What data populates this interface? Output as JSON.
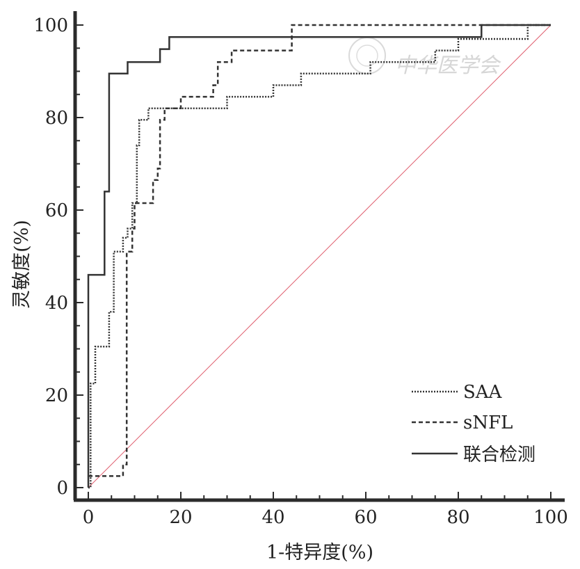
{
  "chart_data": {
    "type": "line",
    "subtype": "roc",
    "xlabel": "1-特异度(%)",
    "ylabel": "灵敏度(%)",
    "xlim": [
      0,
      100
    ],
    "ylim": [
      0,
      100
    ],
    "x_ticks": [
      "0",
      "20",
      "40",
      "60",
      "80",
      "100"
    ],
    "y_ticks": [
      "0",
      "20",
      "40",
      "60",
      "80",
      "100"
    ],
    "legend_position": "bottom-right",
    "grid": false,
    "reference_line": {
      "x": [
        0,
        100
      ],
      "y": [
        0,
        100
      ],
      "color": "#e06070"
    },
    "watermark": "中华医学会",
    "series": [
      {
        "name": "SAA",
        "style": "dotted",
        "color": "#333333",
        "points": [
          [
            0,
            0
          ],
          [
            0.5,
            0
          ],
          [
            0.5,
            22.5
          ],
          [
            1.5,
            22.5
          ],
          [
            1.5,
            30.5
          ],
          [
            4.5,
            30.5
          ],
          [
            4.5,
            38
          ],
          [
            5.5,
            38
          ],
          [
            5.5,
            51
          ],
          [
            7.5,
            51
          ],
          [
            7.5,
            54
          ],
          [
            8.5,
            54
          ],
          [
            8.5,
            56
          ],
          [
            9.5,
            56
          ],
          [
            9.5,
            61.5
          ],
          [
            10.5,
            61.5
          ],
          [
            10.5,
            74
          ],
          [
            11,
            74
          ],
          [
            11,
            79.5
          ],
          [
            13,
            79.5
          ],
          [
            13,
            82
          ],
          [
            30,
            82
          ],
          [
            30,
            84.5
          ],
          [
            40,
            84.5
          ],
          [
            40,
            87
          ],
          [
            46,
            87
          ],
          [
            46,
            89.5
          ],
          [
            61,
            89.5
          ],
          [
            61,
            92
          ],
          [
            75,
            92
          ],
          [
            75,
            94.5
          ],
          [
            80,
            94.5
          ],
          [
            80,
            97
          ],
          [
            95,
            97
          ],
          [
            95,
            100
          ],
          [
            100,
            100
          ]
        ]
      },
      {
        "name": "sNFL",
        "style": "dashed",
        "color": "#333333",
        "points": [
          [
            0,
            2.5
          ],
          [
            7.5,
            2.5
          ],
          [
            7.5,
            5
          ],
          [
            8.3,
            5
          ],
          [
            8.3,
            51
          ],
          [
            9.5,
            51
          ],
          [
            9.5,
            56
          ],
          [
            10,
            56
          ],
          [
            10,
            61.5
          ],
          [
            14,
            61.5
          ],
          [
            14,
            66.5
          ],
          [
            15,
            66.5
          ],
          [
            15,
            69
          ],
          [
            15.5,
            69
          ],
          [
            15.5,
            79.5
          ],
          [
            16.5,
            79.5
          ],
          [
            16.5,
            82
          ],
          [
            20,
            82
          ],
          [
            20,
            84.5
          ],
          [
            27,
            84.5
          ],
          [
            27,
            87
          ],
          [
            28,
            87
          ],
          [
            28,
            92
          ],
          [
            31,
            92
          ],
          [
            31,
            94.5
          ],
          [
            44,
            94.5
          ],
          [
            44,
            100
          ],
          [
            100,
            100
          ]
        ]
      },
      {
        "name": "联合检测",
        "style": "solid",
        "color": "#333333",
        "points": [
          [
            0,
            0
          ],
          [
            0,
            46
          ],
          [
            3.5,
            46
          ],
          [
            3.5,
            64
          ],
          [
            4.5,
            64
          ],
          [
            4.5,
            89.5
          ],
          [
            8.5,
            89.5
          ],
          [
            8.5,
            92
          ],
          [
            15.5,
            92
          ],
          [
            15.5,
            94.8
          ],
          [
            17.5,
            94.8
          ],
          [
            17.5,
            97.4
          ],
          [
            85,
            97.4
          ],
          [
            85,
            100
          ],
          [
            100,
            100
          ]
        ]
      }
    ]
  }
}
